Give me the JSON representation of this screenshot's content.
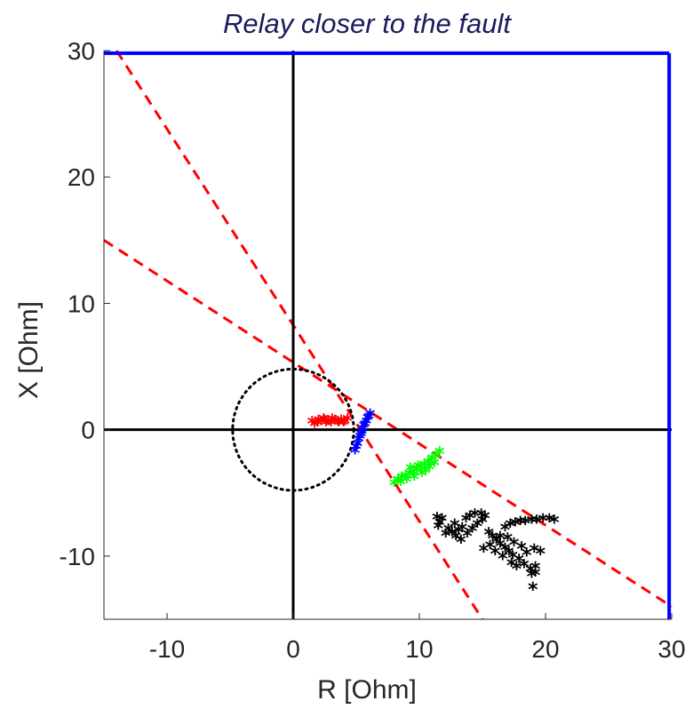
{
  "chart_data": {
    "type": "scatter",
    "title": "Relay closer to the fault",
    "xlabel": "R [Ohm]",
    "ylabel": "X [Ohm]",
    "xlim": [
      -15,
      30
    ],
    "ylim": [
      -15,
      30
    ],
    "xticks": [
      -10,
      0,
      10,
      20,
      30
    ],
    "yticks": [
      -10,
      0,
      10,
      20,
      30
    ],
    "xtick_labels": [
      "-10",
      "0",
      "10",
      "20",
      "30"
    ],
    "ytick_labels": [
      "-10",
      "0",
      "10",
      "20",
      "30"
    ],
    "grid": false,
    "colors": {
      "axes_lines": "#000000",
      "boundary": "#0000ff",
      "dashed": "#ff0000",
      "circle": "#000000",
      "red_cluster": "#ff0000",
      "blue_cluster": "#0000ff",
      "green_cluster": "#00ff00",
      "black_cluster": "#000000"
    },
    "reference_lines": [
      {
        "style": "dashed",
        "color": "red",
        "points": [
          [
            -14,
            30
          ],
          [
            15,
            -15
          ]
        ]
      },
      {
        "style": "dashed",
        "color": "red",
        "points": [
          [
            -15,
            15
          ],
          [
            30,
            -14
          ]
        ]
      }
    ],
    "boundary_lines": [
      {
        "color": "blue",
        "points": [
          [
            -15,
            29.8
          ],
          [
            29.8,
            29.8
          ]
        ]
      },
      {
        "color": "blue",
        "points": [
          [
            29.8,
            29.8
          ],
          [
            29.8,
            -15
          ]
        ]
      }
    ],
    "circle": {
      "center": [
        0,
        0
      ],
      "radius": 4.8,
      "style": "dotted"
    },
    "series": [
      {
        "color": "red",
        "marker": "*",
        "points": [
          [
            1.5,
            0.5
          ],
          [
            1.9,
            0.4
          ],
          [
            2.2,
            0.5
          ],
          [
            2.5,
            0.6
          ],
          [
            2.8,
            0.5
          ],
          [
            3.0,
            0.4
          ],
          [
            3.3,
            0.6
          ],
          [
            3.5,
            0.5
          ],
          [
            3.8,
            0.6
          ],
          [
            4.1,
            0.5
          ],
          [
            4.3,
            0.7
          ],
          [
            2.0,
            0.6
          ],
          [
            2.6,
            0.4
          ],
          [
            3.1,
            0.7
          ],
          [
            3.6,
            0.4
          ],
          [
            1.7,
            0.3
          ],
          [
            4.0,
            0.4
          ],
          [
            2.4,
            0.7
          ]
        ]
      },
      {
        "color": "blue",
        "marker": "*",
        "points": [
          [
            4.9,
            -1.8
          ],
          [
            5.1,
            -1.3
          ],
          [
            5.2,
            -0.9
          ],
          [
            5.4,
            -0.5
          ],
          [
            5.5,
            -0.1
          ],
          [
            5.6,
            0.2
          ],
          [
            5.8,
            0.5
          ],
          [
            5.9,
            0.8
          ],
          [
            6.1,
            1.1
          ],
          [
            5.0,
            -1.5
          ],
          [
            5.3,
            -0.7
          ],
          [
            5.7,
            0.3
          ],
          [
            6.0,
            0.9
          ],
          [
            5.45,
            -0.3
          ]
        ]
      },
      {
        "color": "green",
        "marker": "*",
        "points": [
          [
            8.0,
            -4.4
          ],
          [
            8.3,
            -4.1
          ],
          [
            8.6,
            -3.9
          ],
          [
            8.9,
            -3.8
          ],
          [
            9.2,
            -3.6
          ],
          [
            9.5,
            -3.5
          ],
          [
            9.8,
            -3.3
          ],
          [
            10.1,
            -3.1
          ],
          [
            10.4,
            -2.9
          ],
          [
            10.7,
            -2.7
          ],
          [
            11.0,
            -2.4
          ],
          [
            11.3,
            -2.2
          ],
          [
            11.6,
            -1.9
          ],
          [
            9.0,
            -4.1
          ],
          [
            9.6,
            -3.9
          ],
          [
            10.2,
            -3.6
          ],
          [
            10.8,
            -3.1
          ],
          [
            11.2,
            -2.8
          ],
          [
            8.5,
            -4.3
          ],
          [
            9.9,
            -3.0
          ],
          [
            10.5,
            -3.4
          ],
          [
            9.3,
            -3.2
          ]
        ]
      },
      {
        "color": "black",
        "marker": "*",
        "points": [
          [
            11.4,
            -7.1
          ],
          [
            11.6,
            -7.5
          ],
          [
            11.8,
            -7.2
          ],
          [
            11.5,
            -7.8
          ],
          [
            12.3,
            -8.0
          ],
          [
            12.6,
            -8.3
          ],
          [
            12.9,
            -8.6
          ],
          [
            13.1,
            -8.1
          ],
          [
            12.8,
            -7.6
          ],
          [
            13.4,
            -7.9
          ],
          [
            13.7,
            -7.2
          ],
          [
            14.0,
            -7.0
          ],
          [
            14.4,
            -6.8
          ],
          [
            14.9,
            -6.8
          ],
          [
            15.2,
            -7.0
          ],
          [
            13.8,
            -8.4
          ],
          [
            14.2,
            -8.0
          ],
          [
            14.6,
            -7.6
          ],
          [
            15.0,
            -7.3
          ],
          [
            15.5,
            -8.3
          ],
          [
            15.8,
            -8.6
          ],
          [
            16.1,
            -8.9
          ],
          [
            16.4,
            -9.2
          ],
          [
            16.8,
            -9.5
          ],
          [
            17.1,
            -9.8
          ],
          [
            17.4,
            -10.1
          ],
          [
            17.9,
            -10.4
          ],
          [
            18.3,
            -10.8
          ],
          [
            18.8,
            -11.2
          ],
          [
            19.2,
            -11.0
          ],
          [
            18.9,
            -11.6
          ],
          [
            16.0,
            -9.8
          ],
          [
            16.6,
            -10.2
          ],
          [
            17.3,
            -10.7
          ],
          [
            17.7,
            -11.0
          ],
          [
            15.6,
            -9.3
          ],
          [
            16.8,
            -7.9
          ],
          [
            17.2,
            -7.6
          ],
          [
            17.6,
            -7.5
          ],
          [
            18.0,
            -7.4
          ],
          [
            18.4,
            -7.4
          ],
          [
            18.9,
            -7.3
          ],
          [
            19.3,
            -7.3
          ],
          [
            19.8,
            -7.2
          ],
          [
            20.3,
            -7.2
          ],
          [
            20.7,
            -7.3
          ],
          [
            16.4,
            -8.6
          ],
          [
            17.0,
            -8.7
          ],
          [
            17.5,
            -9.1
          ],
          [
            18.1,
            -9.4
          ],
          [
            18.5,
            -9.9
          ],
          [
            19.1,
            -9.6
          ],
          [
            19.6,
            -9.8
          ],
          [
            19.2,
            -11.5
          ],
          [
            19.0,
            -12.6
          ],
          [
            12.1,
            -8.4
          ],
          [
            13.3,
            -8.9
          ],
          [
            15.1,
            -9.6
          ]
        ]
      }
    ]
  }
}
